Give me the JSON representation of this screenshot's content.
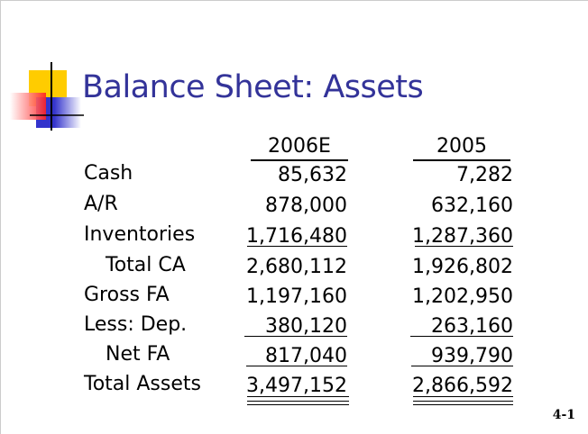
{
  "title": "Balance Sheet: Assets",
  "columns": [
    "2006E",
    "2005"
  ],
  "rows": [
    {
      "label": "Cash",
      "v2006": "85,632",
      "v2005": "7,282"
    },
    {
      "label": "A/R",
      "v2006": "878,000",
      "v2005": "632,160"
    },
    {
      "label": "Inventories",
      "v2006": "1,716,480",
      "v2005": "1,287,360"
    },
    {
      "label": "Total CA",
      "v2006": "2,680,112",
      "v2005": "1,926,802"
    },
    {
      "label": "Gross FA",
      "v2006": "1,197,160",
      "v2005": "1,202,950"
    },
    {
      "label": "Less: Dep.",
      "v2006": "380,120",
      "v2005": "263,160"
    },
    {
      "label": "Net FA",
      "v2006": "817,040",
      "v2005": "939,790"
    },
    {
      "label": "Total Assets",
      "v2006": "3,497,152",
      "v2005": "2,866,592"
    }
  ],
  "page_number": "4-1",
  "colors": {
    "title": "#333399",
    "logo_yellow": "#ffcc00",
    "logo_red": "#ff3333",
    "logo_blue": "#3333cc"
  }
}
